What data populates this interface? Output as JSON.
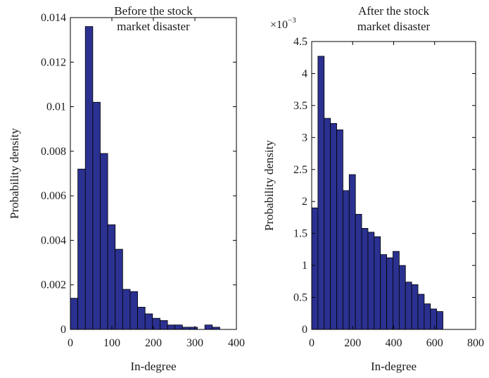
{
  "colors": {
    "bar_fill": "#2b3190",
    "bar_edge": "#000000"
  },
  "chart_data": [
    {
      "type": "bar",
      "title_lines": [
        "Before the stock",
        "market disaster"
      ],
      "xlabel": "In-degree",
      "ylabel": "Probability density",
      "xlim": [
        0,
        400
      ],
      "ylim": [
        0,
        0.014
      ],
      "xticks": [
        0,
        100,
        200,
        300,
        400
      ],
      "xtick_labels": [
        "0",
        "100",
        "200",
        "300",
        "400"
      ],
      "yticks": [
        0,
        0.002,
        0.004,
        0.006,
        0.008,
        0.01,
        0.012,
        0.014
      ],
      "ytick_labels": [
        "0",
        "0.002",
        "0.004",
        "0.006",
        "0.008",
        "0.01",
        "0.012",
        "0.014"
      ],
      "bin_width": 18,
      "bin_start": 0,
      "values": [
        0.0014,
        0.0072,
        0.0136,
        0.0102,
        0.0079,
        0.0047,
        0.0036,
        0.0018,
        0.0017,
        0.001,
        0.0007,
        0.0005,
        0.0004,
        0.0002,
        0.0002,
        0.0001,
        0.0001,
        0.0,
        0.0002,
        0.0001
      ]
    },
    {
      "type": "bar",
      "title_lines": [
        "After the stock",
        "market disaster"
      ],
      "xlabel": "In-degree",
      "ylabel": "Probability density",
      "exponent": "×10",
      "exponent_power": "−3",
      "xlim": [
        0,
        800
      ],
      "ylim": [
        0,
        4.5
      ],
      "value_scale": 0.001,
      "xticks": [
        0,
        200,
        400,
        600,
        800
      ],
      "xtick_labels": [
        "0",
        "200",
        "400",
        "600",
        "800"
      ],
      "yticks": [
        0,
        0.5,
        1,
        1.5,
        2,
        2.5,
        3,
        3.5,
        4,
        4.5
      ],
      "ytick_labels": [
        "0",
        "0.5",
        "1",
        "1.5",
        "2",
        "2.5",
        "3",
        "3.5",
        "4",
        "4.5"
      ],
      "bin_width": 30.5,
      "bin_start": 0,
      "values": [
        1.9,
        4.27,
        3.3,
        3.22,
        3.12,
        2.17,
        2.42,
        1.8,
        1.58,
        1.52,
        1.45,
        1.17,
        1.12,
        1.22,
        1.0,
        0.74,
        0.7,
        0.55,
        0.4,
        0.32,
        0.28
      ]
    }
  ]
}
